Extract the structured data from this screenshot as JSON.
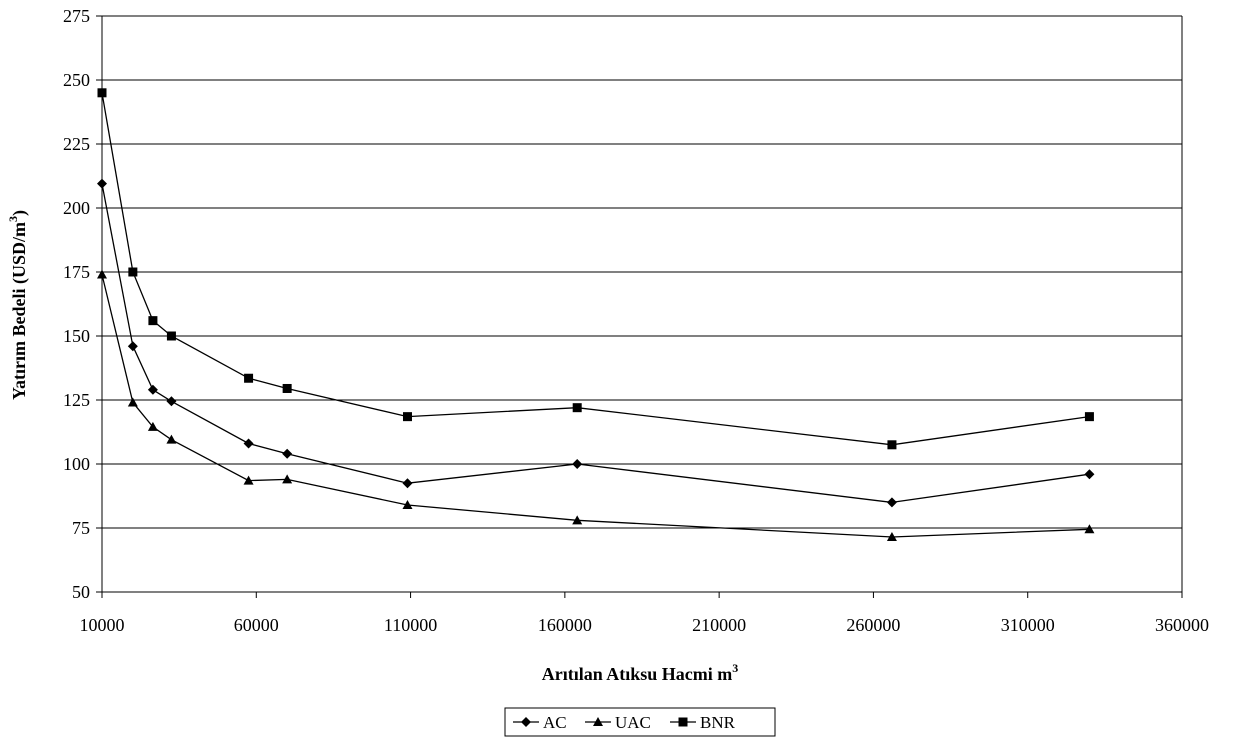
{
  "chart_data": {
    "type": "line",
    "title": "",
    "xlabel": "Arıtılan Atıksu Hacmi m",
    "xlabel_superscript": "3",
    "ylabel": "Yatırım Bedeli (USD/m",
    "ylabel_superscript": "3",
    "ylabel_suffix": ")",
    "xlim": [
      10000,
      360000
    ],
    "ylim": [
      50,
      275
    ],
    "x_ticks": [
      10000,
      60000,
      110000,
      160000,
      210000,
      260000,
      310000,
      360000
    ],
    "y_ticks": [
      50,
      75,
      100,
      125,
      150,
      175,
      200,
      225,
      250,
      275
    ],
    "grid": "horizontal",
    "legend_position": "bottom-center",
    "x": [
      10000,
      20000,
      26500,
      32500,
      57500,
      70000,
      109000,
      164000,
      266000,
      330000
    ],
    "series": [
      {
        "name": "AC",
        "marker": "diamond",
        "values": [
          209.5,
          146,
          129,
          124.5,
          108,
          104,
          92.5,
          100,
          85,
          96
        ]
      },
      {
        "name": "UAC",
        "marker": "triangle",
        "values": [
          174,
          124,
          114.5,
          109.5,
          93.5,
          94,
          84,
          78,
          71.5,
          74.5
        ]
      },
      {
        "name": "BNR",
        "marker": "square",
        "values": [
          245,
          175,
          156,
          150,
          133.5,
          129.5,
          118.5,
          122,
          107.5,
          118.5
        ]
      }
    ],
    "colors": {
      "line": "#000000",
      "grid": "#000000",
      "background": "#ffffff"
    }
  }
}
